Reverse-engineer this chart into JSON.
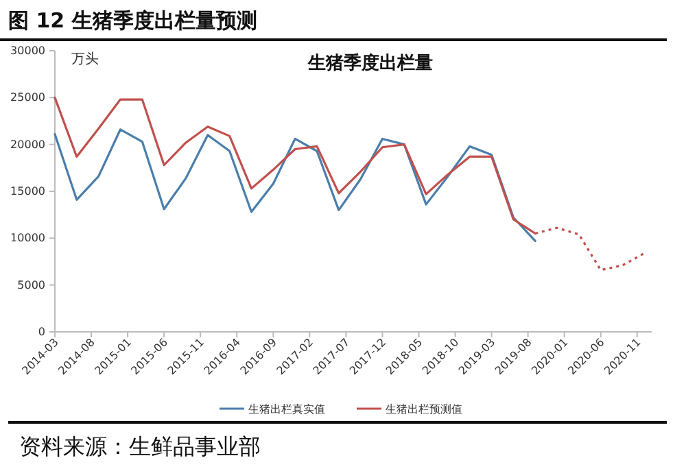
{
  "chart_data": {
    "type": "line",
    "title": "图 12 生猪季度出栏量预测",
    "subtitle": "生猪季度出栏量",
    "ylabel": "万头",
    "xlim": [
      "2014-03",
      "2021-01"
    ],
    "xticks": [
      "2014-03",
      "2014-08",
      "2015-01",
      "2015-06",
      "2015-11",
      "2016-04",
      "2016-09",
      "2017-02",
      "2017-07",
      "2017-12",
      "2018-05",
      "2018-10",
      "2019-03",
      "2019-08",
      "2020-01",
      "2020-06",
      "2020-11"
    ],
    "ylim": [
      0,
      30000
    ],
    "yticks": [
      0,
      5000,
      10000,
      15000,
      20000,
      25000,
      30000
    ],
    "grid": false,
    "legend": "bottom",
    "marker": "none",
    "annotations": [
      "资料来源：生鲜品事业部"
    ],
    "series": [
      {
        "name": "生猪出栏真实值",
        "color": "#4a7eab",
        "line_style": "solid",
        "x": [
          "2014-03",
          "2014-06",
          "2014-09",
          "2014-12",
          "2015-03",
          "2015-06",
          "2015-09",
          "2015-12",
          "2016-03",
          "2016-06",
          "2016-09",
          "2016-12",
          "2017-03",
          "2017-06",
          "2017-09",
          "2017-12",
          "2018-03",
          "2018-06",
          "2018-09",
          "2018-12",
          "2019-03",
          "2019-06",
          "2019-09"
        ],
        "values": [
          21100,
          14100,
          16600,
          21600,
          20300,
          13100,
          16400,
          21000,
          19300,
          12800,
          15800,
          20600,
          19300,
          13000,
          16300,
          20600,
          20000,
          13600,
          16600,
          19800,
          18900,
          12200,
          9700
        ]
      },
      {
        "name": "生猪出栏预测值",
        "color": "#c0504d",
        "line_style": "solid",
        "x": [
          "2014-03",
          "2014-06",
          "2014-09",
          "2014-12",
          "2015-03",
          "2015-06",
          "2015-09",
          "2015-12",
          "2016-03",
          "2016-06",
          "2016-09",
          "2016-12",
          "2017-03",
          "2017-06",
          "2017-09",
          "2017-12",
          "2018-03",
          "2018-06",
          "2018-09",
          "2018-12",
          "2019-03",
          "2019-06",
          "2019-09"
        ],
        "values": [
          25000,
          18700,
          21700,
          24800,
          24800,
          17800,
          20200,
          21900,
          20900,
          15300,
          17300,
          19500,
          19800,
          14800,
          17100,
          19700,
          20000,
          14700,
          16800,
          18700,
          18700,
          12000,
          10500
        ]
      },
      {
        "color": "#c0504d",
        "line_style": "dotted",
        "x": [
          "2019-09",
          "2019-12",
          "2020-03",
          "2020-06",
          "2020-09",
          "2020-12"
        ],
        "values": [
          10500,
          11100,
          10400,
          6600,
          7100,
          8400
        ]
      }
    ]
  }
}
